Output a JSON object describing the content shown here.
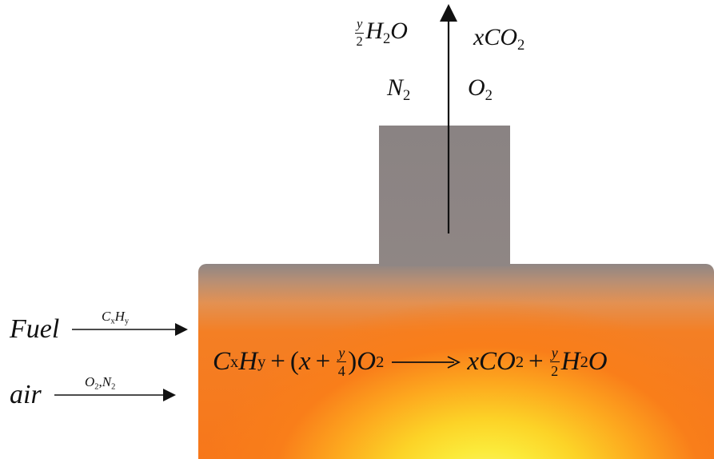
{
  "exhaust": {
    "h2o": {
      "coef_num": "y",
      "coef_den": "2",
      "species": "H",
      "sub": "2",
      "tail": "O"
    },
    "co2": {
      "coef": "x",
      "species": "CO",
      "sub": "2"
    },
    "n2": {
      "species": "N",
      "sub": "2"
    },
    "o2": {
      "species": "O",
      "sub": "2"
    }
  },
  "inlets": {
    "fuel": {
      "label": "Fuel",
      "species_a": "C",
      "sub_a": "x",
      "species_b": "H",
      "sub_b": "y"
    },
    "air": {
      "label": "air",
      "species_a": "O",
      "sub_a": "2",
      "species_b": "N",
      "sub_b": "2",
      "separator": ","
    }
  },
  "equation": {
    "lhs_a": "C",
    "lhs_a_sub": "x",
    "lhs_b": "H",
    "lhs_b_sub": "y",
    "plus": "+",
    "open": "(",
    "x": "x",
    "plus2": "+",
    "frac_num": "y",
    "frac_den": "4",
    "close": ")",
    "o": "O",
    "o_sub": "2",
    "rhs_coef": "x",
    "rhs_co": "CO",
    "rhs_co_sub": "2",
    "plus3": "+",
    "rhs_frac_num": "y",
    "rhs_frac_den": "2",
    "rhs_h": "H",
    "rhs_h_sub": "2",
    "rhs_o": "O"
  },
  "colors": {
    "chimney": "#8a8383",
    "flame_outer": "#f7771a",
    "flame_core": "#fbf56a"
  }
}
